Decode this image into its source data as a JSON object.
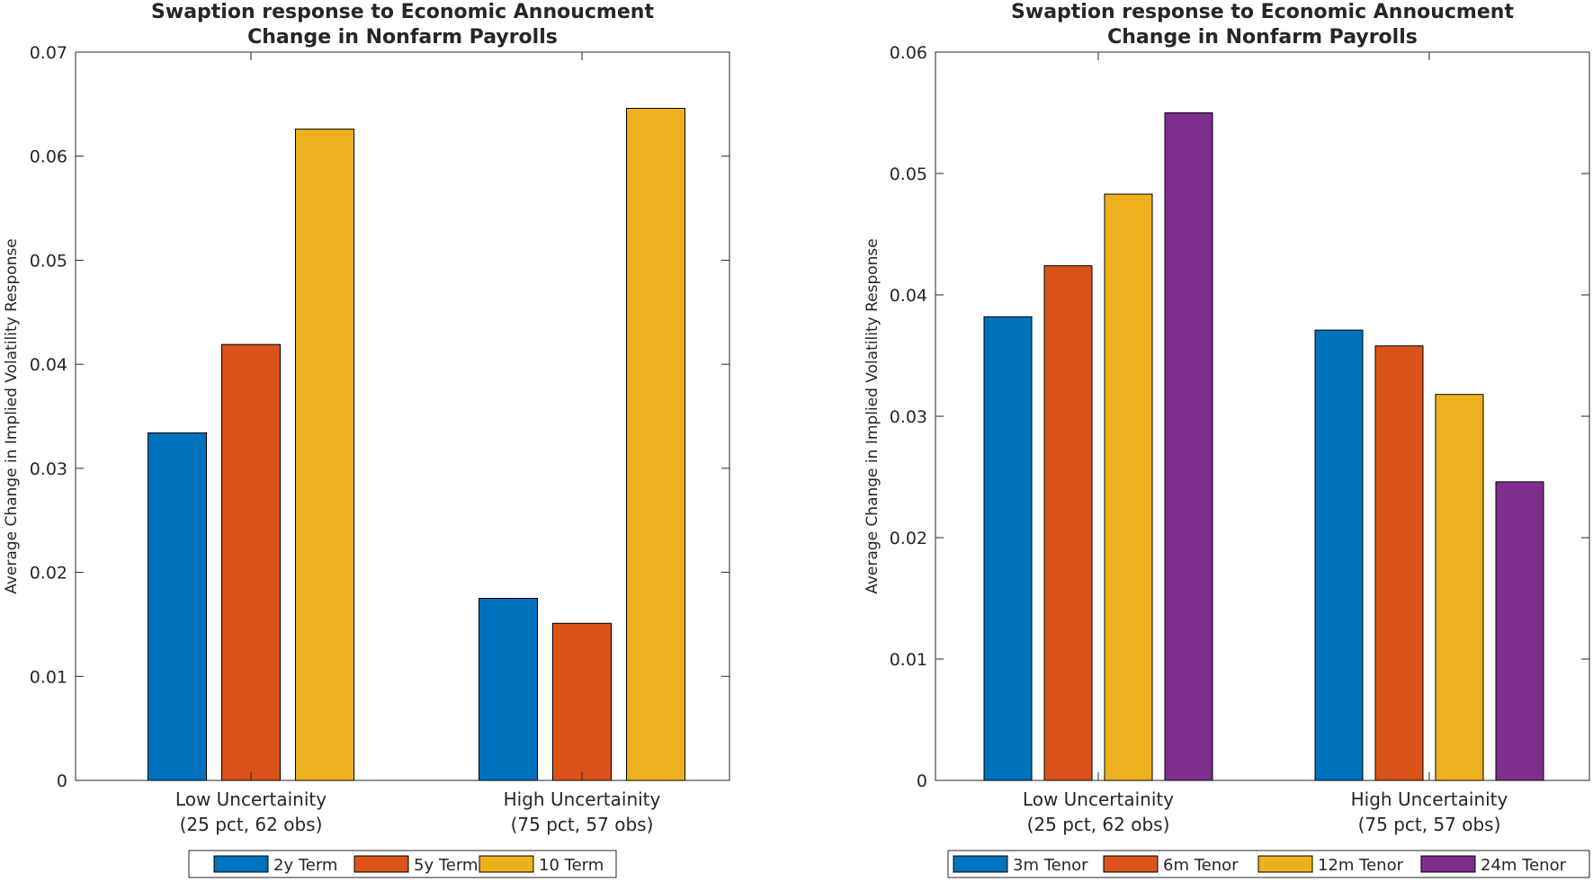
{
  "chart_data": [
    {
      "type": "bar",
      "title_lines": [
        "Swaption response to Economic Annoucment",
        "Change in Nonfarm Payrolls"
      ],
      "ylabel": "Average Change in Implied Volatility Response",
      "xlabel": "",
      "categories": [
        [
          "Low Uncertainity",
          "(25 pct, 62 obs)"
        ],
        [
          "High Uncertainity",
          "(75 pct, 57 obs)"
        ]
      ],
      "ylim": [
        0,
        0.07
      ],
      "yticks": [
        0,
        0.01,
        0.02,
        0.03,
        0.04,
        0.05,
        0.06,
        0.07
      ],
      "ytick_labels": [
        "0",
        "0.01",
        "0.02",
        "0.03",
        "0.04",
        "0.05",
        "0.06",
        "0.07"
      ],
      "grid": false,
      "legend_position": "bottom-outside, horizontal",
      "series": [
        {
          "name": "2y Term",
          "color": "#0072BD",
          "values": [
            0.0334,
            0.0175
          ]
        },
        {
          "name": "5y Term",
          "color": "#D95319",
          "values": [
            0.0419,
            0.0151
          ]
        },
        {
          "name": "10 Term",
          "color": "#EDB120",
          "values": [
            0.0626,
            0.0646
          ]
        }
      ]
    },
    {
      "type": "bar",
      "title_lines": [
        "Swaption response to Economic Annoucment",
        "Change in Nonfarm Payrolls"
      ],
      "ylabel": "Average Change in Implied Volatility Response",
      "xlabel": "",
      "categories": [
        [
          "Low Uncertainity",
          "(25 pct, 62 obs)"
        ],
        [
          "High Uncertainity",
          "(75 pct, 57 obs)"
        ]
      ],
      "ylim": [
        0,
        0.06
      ],
      "yticks": [
        0,
        0.01,
        0.02,
        0.03,
        0.04,
        0.05,
        0.06
      ],
      "ytick_labels": [
        "0",
        "0.01",
        "0.02",
        "0.03",
        "0.04",
        "0.05",
        "0.06"
      ],
      "grid": false,
      "legend_position": "bottom-outside, horizontal",
      "series": [
        {
          "name": "3m Tenor",
          "color": "#0072BD",
          "values": [
            0.0382,
            0.0371
          ]
        },
        {
          "name": "6m Tenor",
          "color": "#D95319",
          "values": [
            0.0424,
            0.0358
          ]
        },
        {
          "name": "12m Tenor",
          "color": "#EDB120",
          "values": [
            0.0483,
            0.0318
          ]
        },
        {
          "name": "24m Tenor",
          "color": "#7E2F8E",
          "values": [
            0.055,
            0.0246
          ]
        }
      ]
    }
  ]
}
